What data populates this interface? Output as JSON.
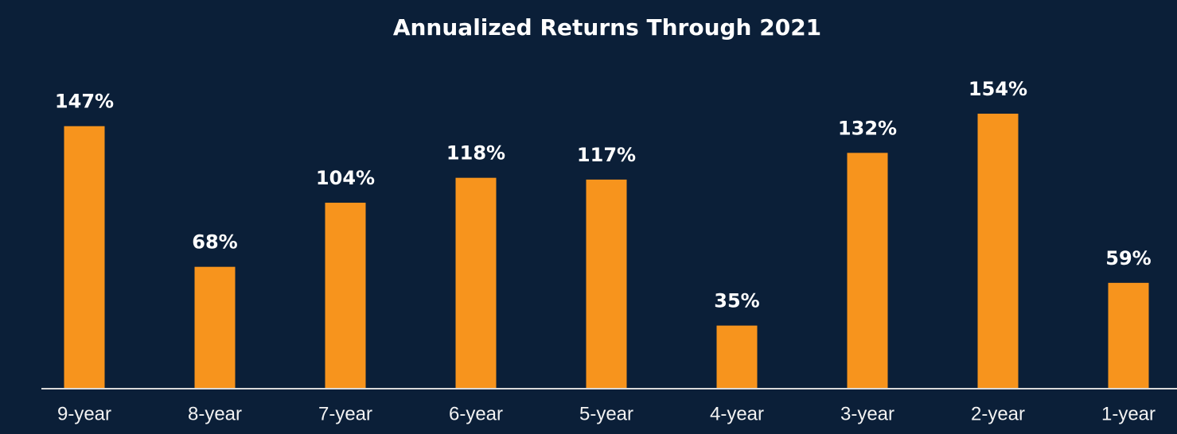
{
  "chart_data": {
    "type": "bar",
    "title": "Annualized Returns Through 2021",
    "categories": [
      "9-year",
      "8-year",
      "7-year",
      "6-year",
      "5-year",
      "4-year",
      "3-year",
      "2-year",
      "1-year"
    ],
    "values": [
      147,
      68,
      104,
      118,
      117,
      35,
      132,
      154,
      59
    ],
    "value_labels": [
      "147%",
      "68%",
      "104%",
      "118%",
      "117%",
      "35%",
      "132%",
      "154%",
      "59%"
    ],
    "color": "#f7941d"
  }
}
